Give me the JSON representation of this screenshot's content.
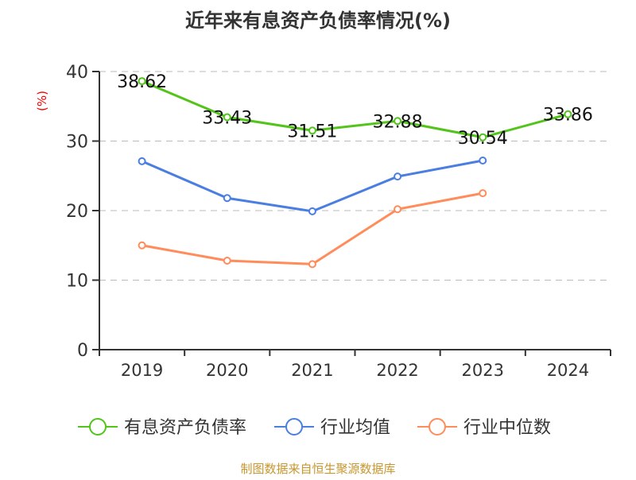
{
  "chart_data": {
    "type": "line",
    "title": "近年来有息资产负债率情况(%)",
    "ylabel": "(%)",
    "ylim": [
      0,
      40
    ],
    "yticks": [
      0,
      10,
      20,
      30,
      40
    ],
    "grid": true,
    "legend_position": "bottom",
    "categories": [
      "2019",
      "2020",
      "2021",
      "2022",
      "2023",
      "2024"
    ],
    "series": [
      {
        "name": "有息资产负债率",
        "color": "#52c41a",
        "values": [
          38.62,
          33.43,
          31.51,
          32.88,
          30.54,
          33.86
        ],
        "labels": [
          "38.62",
          "33.43",
          "31.51",
          "32.88",
          "30.54",
          "33.86"
        ]
      },
      {
        "name": "行业均值",
        "color": "#4a7ee0",
        "values": [
          27.1,
          21.8,
          19.9,
          24.9,
          27.2,
          null
        ]
      },
      {
        "name": "行业中位数",
        "color": "#ff8c5a",
        "values": [
          15.0,
          12.8,
          12.3,
          20.2,
          22.5,
          null
        ]
      }
    ]
  },
  "footer": {
    "source": "制图数据来自恒生聚源数据库",
    "source_color": "#c8962e"
  }
}
